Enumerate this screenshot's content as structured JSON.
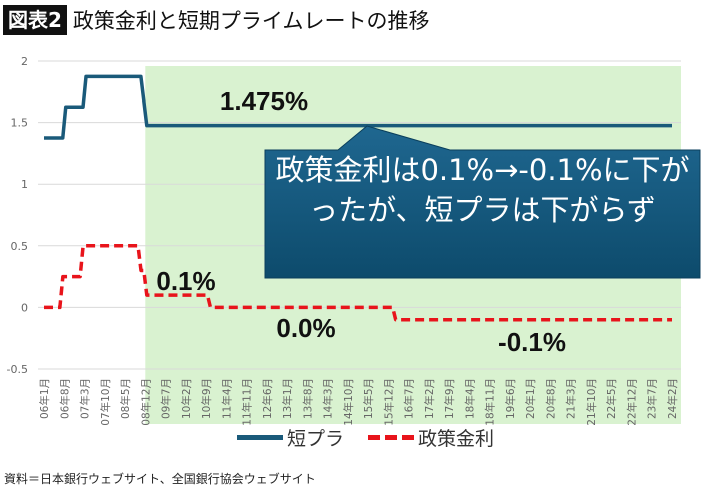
{
  "header": {
    "badge": "図表2",
    "title": "政策金利と短期プライムレートの推移"
  },
  "source": "資料＝日本銀行ウェブサイト、全国銀行協会ウェブサイト",
  "callout": {
    "text": "政策金利は0.1%→-0.1%に下がったが、短プラは下がらず",
    "fill": "#175b80"
  },
  "chart_data": {
    "type": "line",
    "ylim": [
      -0.5,
      2
    ],
    "yticks": [
      "2",
      "1.5",
      "1",
      "0.5",
      "0",
      "-0.5"
    ],
    "ytick_values": [
      2,
      1.5,
      1,
      0.5,
      0,
      -0.5
    ],
    "x_start": "2006-01",
    "x_end": "2024-02",
    "xtick_labels": [
      "06年1月",
      "06年8月",
      "07年3月",
      "07年10月",
      "08年5月",
      "08年12月",
      "09年7月",
      "10年2月",
      "10年9月",
      "11年4月",
      "11年11月",
      "12年6月",
      "13年1月",
      "13年8月",
      "14年3月",
      "14年10月",
      "15年5月",
      "15年12月",
      "16年7月",
      "17年2月",
      "17年9月",
      "18年4月",
      "18年11月",
      "19年6月",
      "20年1月",
      "20年8月",
      "21年3月",
      "21年10月",
      "22年5月",
      "22年12月",
      "23年7月",
      "24年2月"
    ],
    "grid": true,
    "legend_placement": "bottom",
    "shaded_region": {
      "from": "2008-12",
      "to": "2024-02",
      "color": "#d9f2d0"
    },
    "series": [
      {
        "name": "短プラ",
        "color": "#1a5a7a",
        "style": "solid",
        "steps": [
          [
            "2006-01",
            1.375
          ],
          [
            "2006-08",
            1.625
          ],
          [
            "2007-03",
            1.875
          ],
          [
            "2008-11",
            1.675
          ],
          [
            "2008-12",
            1.475
          ]
        ]
      },
      {
        "name": "政策金利",
        "color": "#e8141b",
        "style": "dashed",
        "steps": [
          [
            "2006-01",
            0
          ],
          [
            "2006-07",
            0.25
          ],
          [
            "2007-02",
            0.5
          ],
          [
            "2008-10",
            0.3
          ],
          [
            "2008-12",
            0.1
          ],
          [
            "2010-10",
            0.0
          ],
          [
            "2016-02",
            -0.1
          ]
        ]
      }
    ],
    "annotations": [
      "1.475%",
      "0.1%",
      "0.0%",
      "-0.1%"
    ]
  }
}
